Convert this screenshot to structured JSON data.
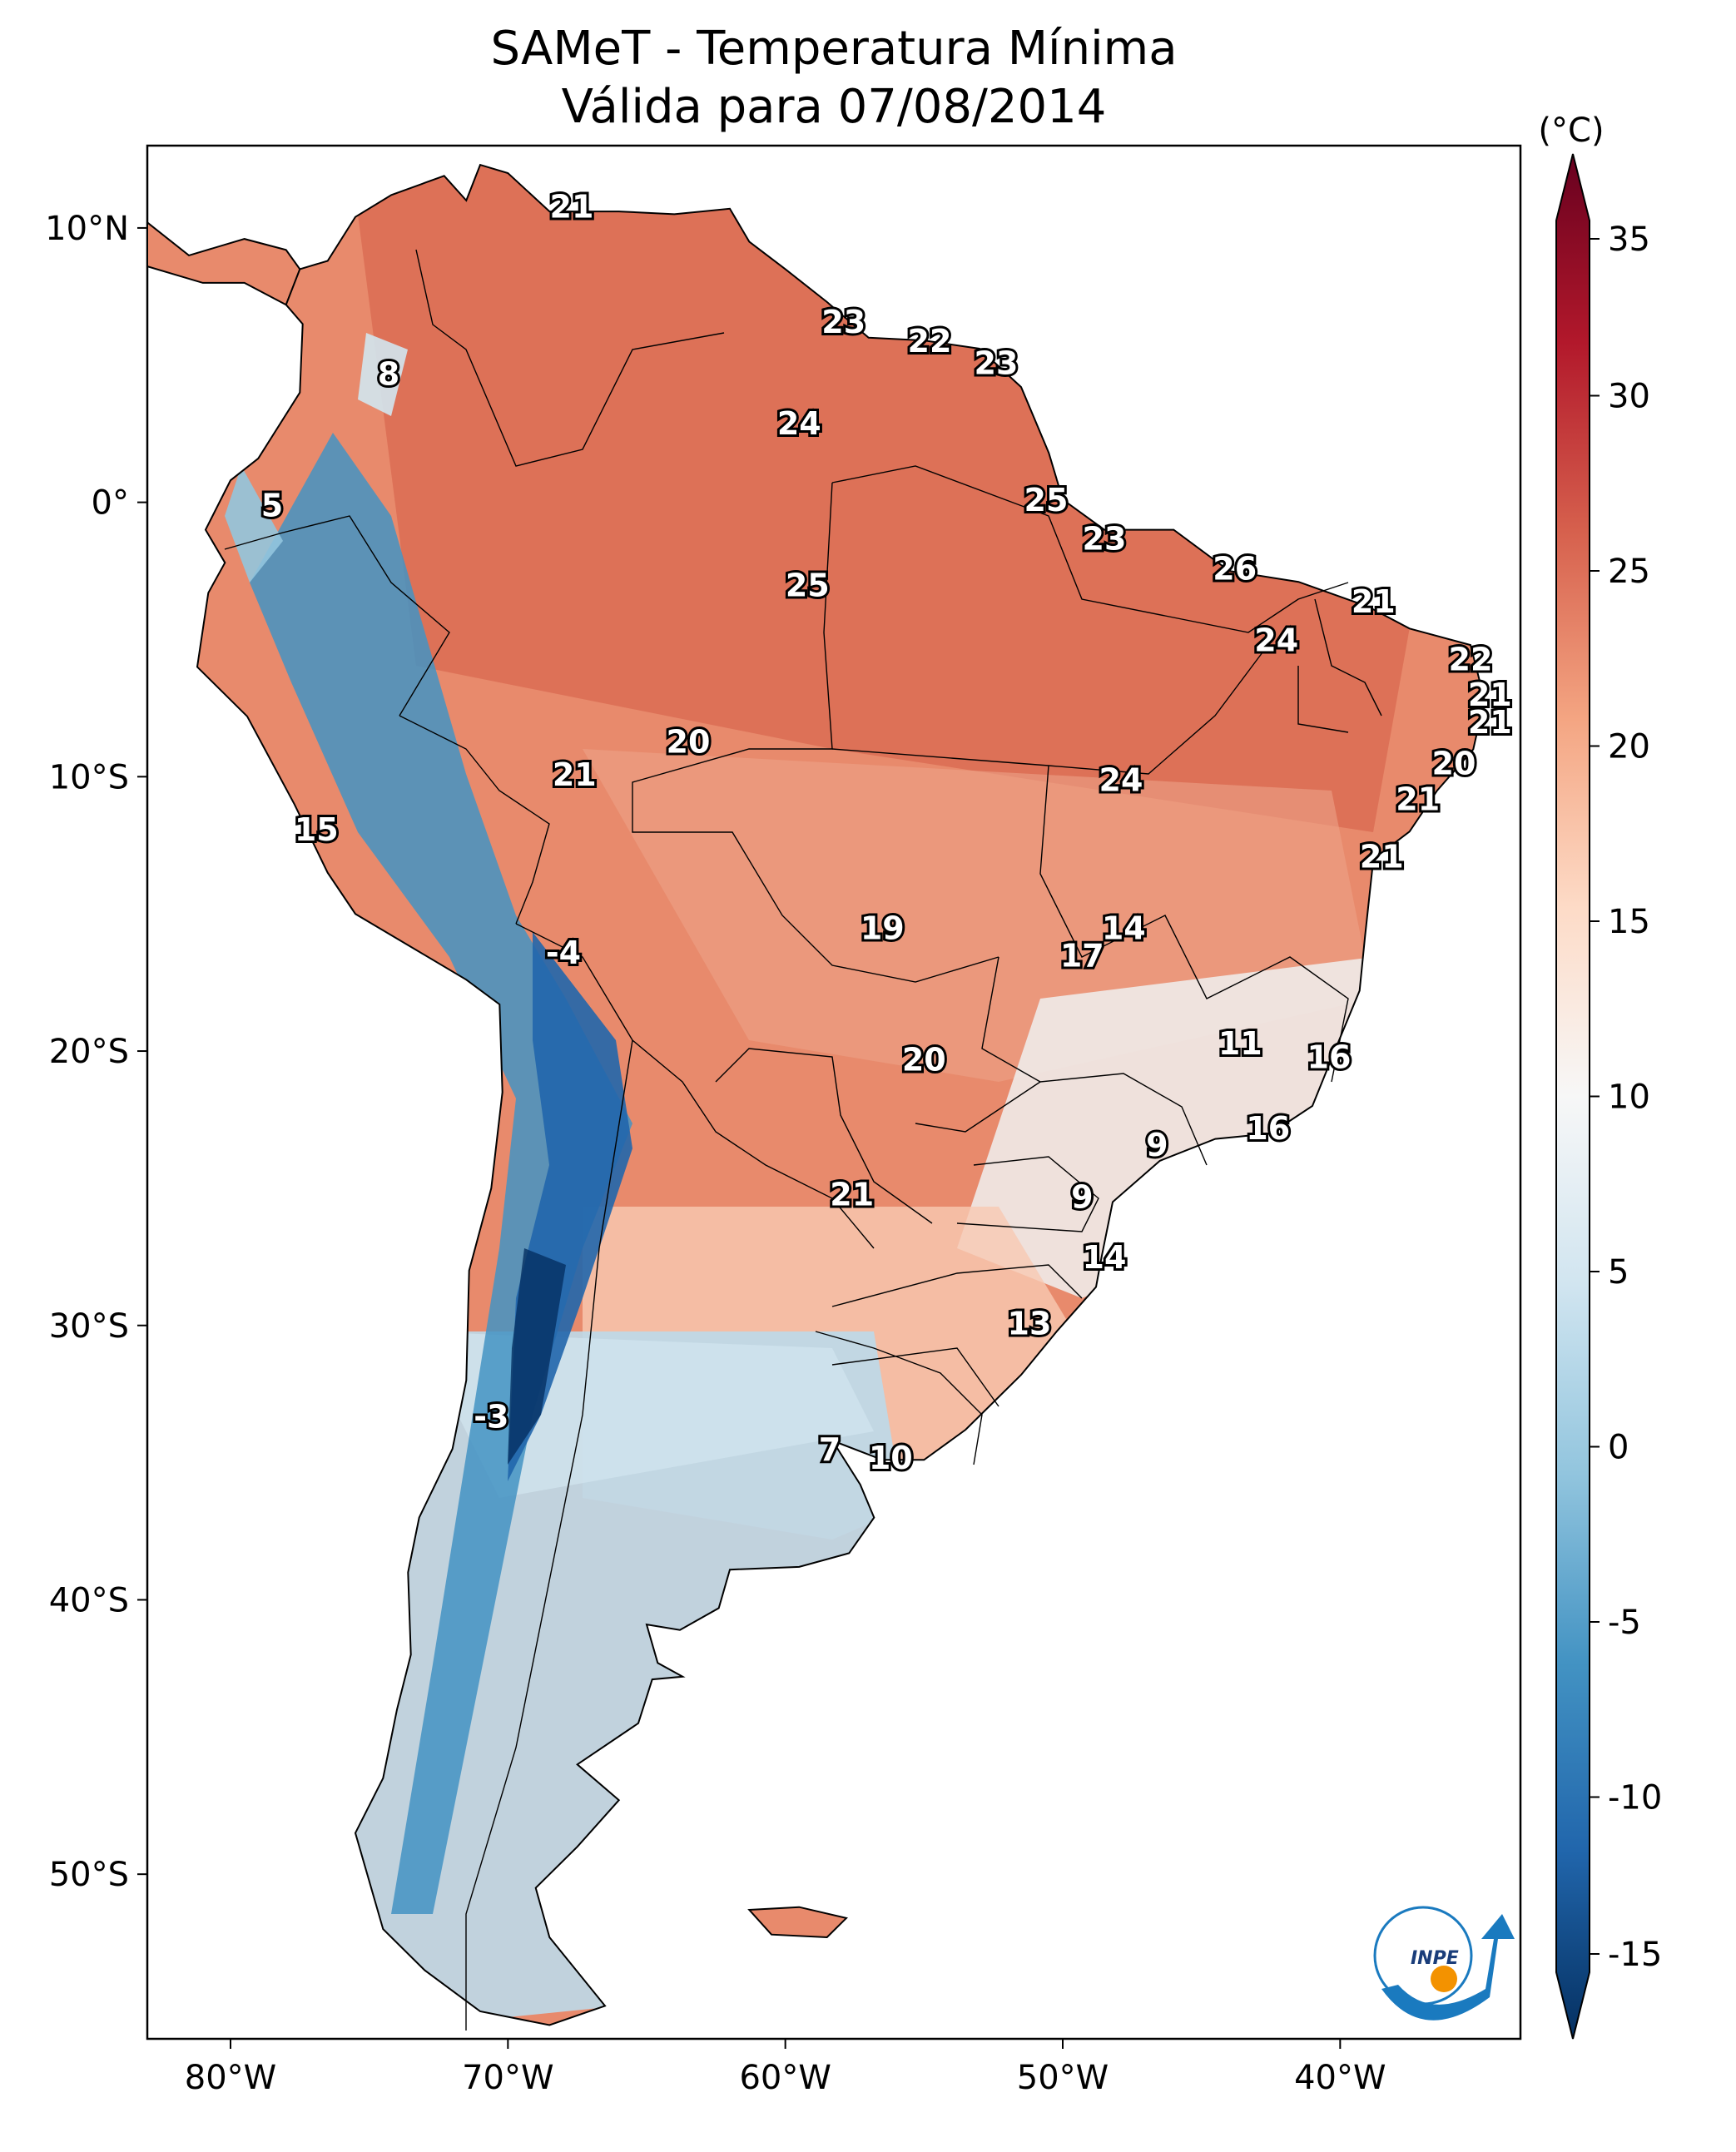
{
  "title": {
    "line1": "SAMeT - Temperatura Mínima",
    "line2": "Válida para 07/08/2014"
  },
  "map": {
    "extent": {
      "lon": [
        -83,
        -33.5
      ],
      "lat": [
        -56,
        13
      ]
    },
    "lon_ticks": [
      {
        "value": -80,
        "label": "80°W"
      },
      {
        "value": -70,
        "label": "70°W"
      },
      {
        "value": -60,
        "label": "60°W"
      },
      {
        "value": -50,
        "label": "50°W"
      },
      {
        "value": -40,
        "label": "40°W"
      }
    ],
    "lat_ticks": [
      {
        "value": 10,
        "label": "10°N"
      },
      {
        "value": 0,
        "label": "0°"
      },
      {
        "value": -10,
        "label": "10°S"
      },
      {
        "value": -20,
        "label": "20°S"
      },
      {
        "value": -30,
        "label": "30°S"
      },
      {
        "value": -40,
        "label": "40°S"
      },
      {
        "value": -50,
        "label": "50°S"
      }
    ],
    "station_values": [
      {
        "lon": -67.7,
        "lat": 10.7,
        "value": "21"
      },
      {
        "lon": -57.9,
        "lat": 6.5,
        "value": "23"
      },
      {
        "lon": -54.8,
        "lat": 5.8,
        "value": "22"
      },
      {
        "lon": -52.4,
        "lat": 5.0,
        "value": "23"
      },
      {
        "lon": -59.5,
        "lat": 2.8,
        "value": "24"
      },
      {
        "lon": -74.3,
        "lat": 4.6,
        "value": "8"
      },
      {
        "lon": -78.5,
        "lat": -0.2,
        "value": "5"
      },
      {
        "lon": -50.6,
        "lat": 0.0,
        "value": "25"
      },
      {
        "lon": -48.5,
        "lat": -1.4,
        "value": "23"
      },
      {
        "lon": -43.8,
        "lat": -2.5,
        "value": "26"
      },
      {
        "lon": -59.2,
        "lat": -3.1,
        "value": "25"
      },
      {
        "lon": -38.8,
        "lat": -3.7,
        "value": "21"
      },
      {
        "lon": -42.3,
        "lat": -5.1,
        "value": "24"
      },
      {
        "lon": -35.3,
        "lat": -5.8,
        "value": "22"
      },
      {
        "lon": -34.6,
        "lat": -7.1,
        "value": "21"
      },
      {
        "lon": -34.6,
        "lat": -8.1,
        "value": "21"
      },
      {
        "lon": -63.5,
        "lat": -8.8,
        "value": "20"
      },
      {
        "lon": -35.9,
        "lat": -9.6,
        "value": "20"
      },
      {
        "lon": -67.6,
        "lat": -10.0,
        "value": "21"
      },
      {
        "lon": -47.9,
        "lat": -10.2,
        "value": "24"
      },
      {
        "lon": -37.2,
        "lat": -10.9,
        "value": "21"
      },
      {
        "lon": -76.9,
        "lat": -12.0,
        "value": "15"
      },
      {
        "lon": -38.5,
        "lat": -13.0,
        "value": "21"
      },
      {
        "lon": -56.5,
        "lat": -15.6,
        "value": "19"
      },
      {
        "lon": -47.8,
        "lat": -15.6,
        "value": "14"
      },
      {
        "lon": -49.3,
        "lat": -16.6,
        "value": "17"
      },
      {
        "lon": -68.0,
        "lat": -16.5,
        "value": "-4"
      },
      {
        "lon": -43.6,
        "lat": -19.8,
        "value": "11"
      },
      {
        "lon": -40.4,
        "lat": -20.3,
        "value": "16"
      },
      {
        "lon": -55.0,
        "lat": -20.4,
        "value": "20"
      },
      {
        "lon": -42.6,
        "lat": -22.9,
        "value": "16"
      },
      {
        "lon": -46.6,
        "lat": -23.5,
        "value": "9"
      },
      {
        "lon": -57.6,
        "lat": -25.3,
        "value": "21"
      },
      {
        "lon": -49.3,
        "lat": -25.4,
        "value": "9"
      },
      {
        "lon": -48.5,
        "lat": -27.6,
        "value": "14"
      },
      {
        "lon": -51.2,
        "lat": -30.0,
        "value": "13"
      },
      {
        "lon": -70.6,
        "lat": -33.4,
        "value": "-3"
      },
      {
        "lon": -58.4,
        "lat": -34.6,
        "value": "7"
      },
      {
        "lon": -56.2,
        "lat": -34.9,
        "value": "10"
      }
    ]
  },
  "colorbar": {
    "unit": "(°C)",
    "min": -15,
    "max": 35,
    "ticks": [
      "35",
      "30",
      "25",
      "20",
      "15",
      "10",
      "5",
      "0",
      "-5",
      "-10",
      "-15"
    ],
    "ramp": [
      "#053061",
      "#2166ac",
      "#4393c3",
      "#92c5de",
      "#d1e5f0",
      "#f7f7f7",
      "#fddbc7",
      "#f4a582",
      "#d6604d",
      "#b2182b",
      "#67001f"
    ]
  },
  "logo": {
    "text": "INPE",
    "accent": "#1a7abf",
    "dot": "#f39200"
  }
}
